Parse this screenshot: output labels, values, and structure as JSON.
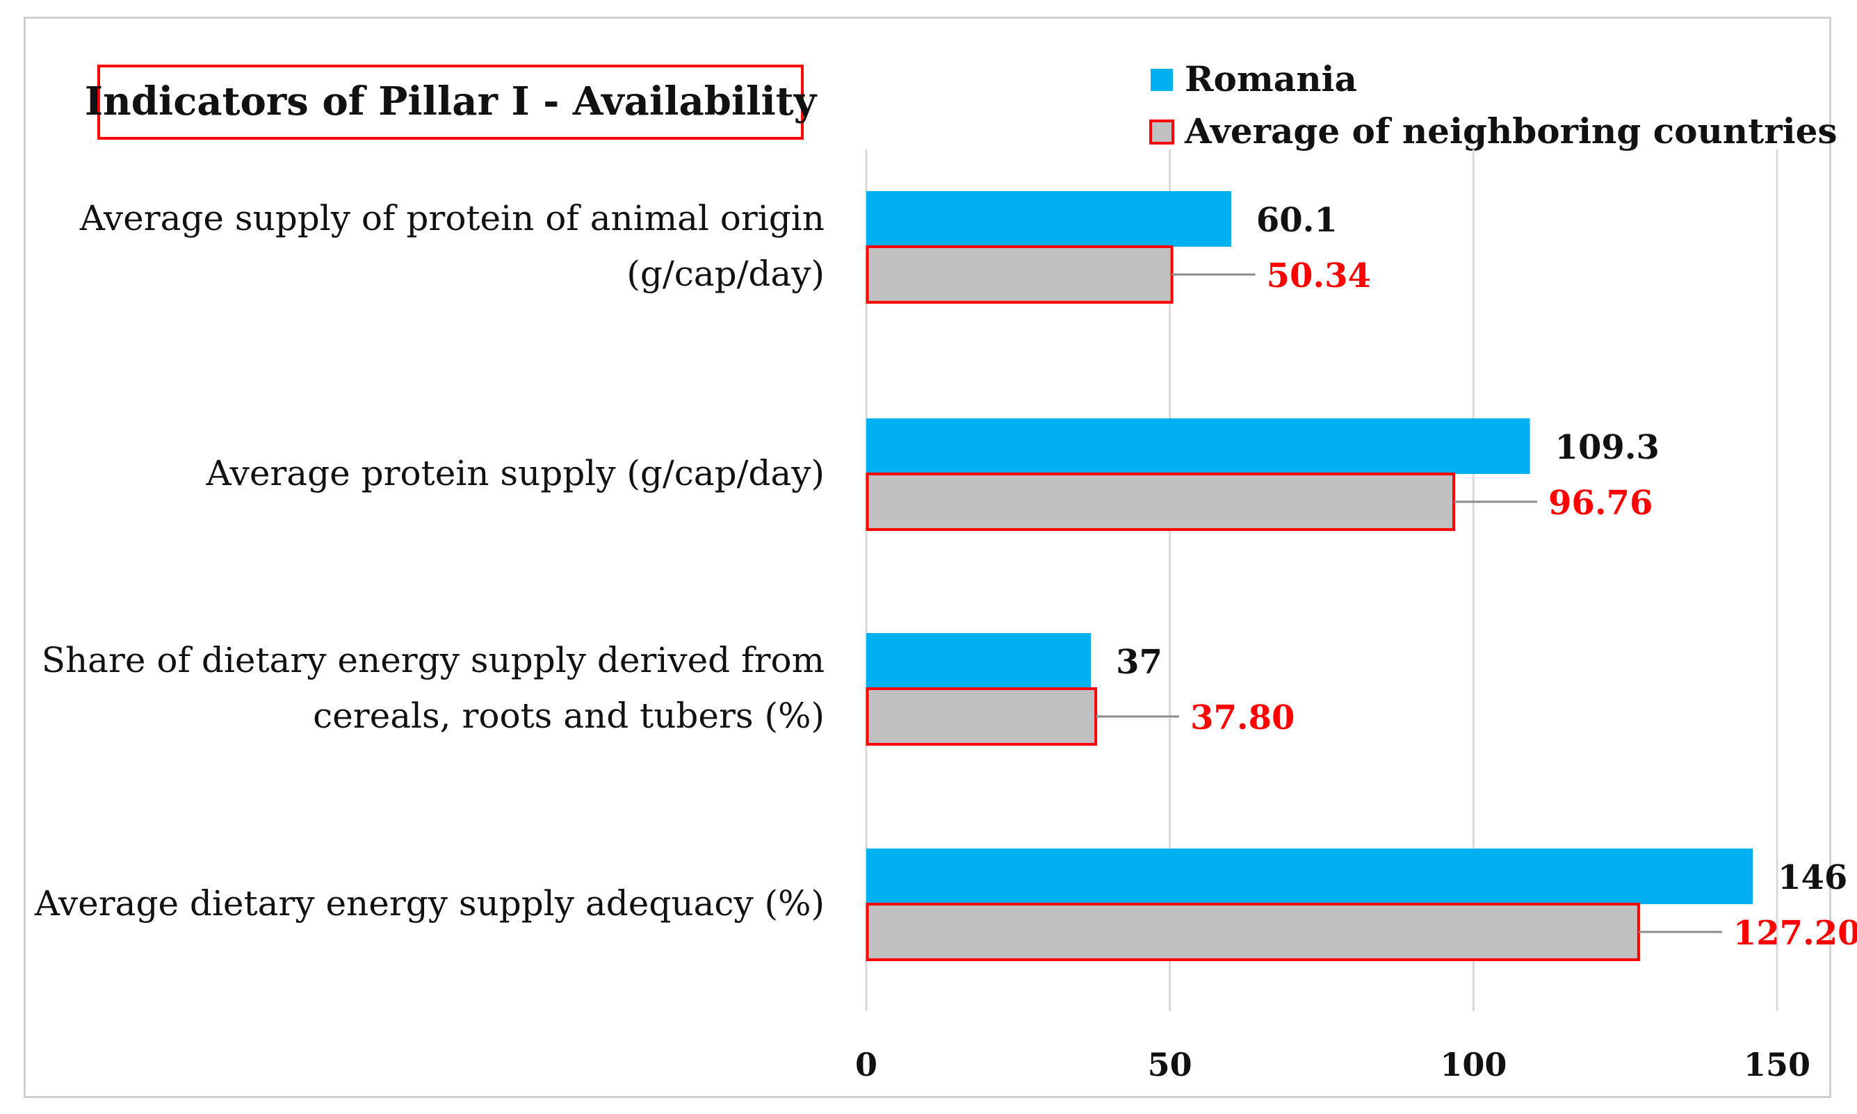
{
  "chart_data": {
    "type": "bar",
    "orientation": "horizontal",
    "title": "Indicators of Pillar I - Availability",
    "categories": [
      [
        "Average supply of protein of animal origin",
        "(g/cap/day)"
      ],
      [
        "Average protein supply (g/cap/day)"
      ],
      [
        "Share of dietary energy supply derived from",
        "cereals, roots and tubers (%)"
      ],
      [
        "Average dietary energy supply adequacy (%)"
      ]
    ],
    "series": [
      {
        "name": "Romania",
        "values": [
          60.1,
          109.3,
          37,
          146
        ],
        "labels": [
          "60.1",
          "109.3",
          "37",
          "146"
        ],
        "color": "#00b0f0"
      },
      {
        "name": "Average of neighboring countries",
        "values": [
          50.34,
          96.76,
          37.8,
          127.2
        ],
        "labels": [
          "50.34",
          "96.76",
          "37.80",
          "127.20"
        ],
        "color": "#c0c0c0",
        "border_color": "#ff0000",
        "label_color": "#ff0000"
      }
    ],
    "xlim": [
      0,
      150
    ],
    "xticks": [
      "0",
      "50",
      "100",
      "150"
    ],
    "xtick_values": [
      0,
      50,
      100,
      150
    ],
    "gridlines": true,
    "legend_position": "top-right",
    "title_box_color": "#ff0000"
  }
}
